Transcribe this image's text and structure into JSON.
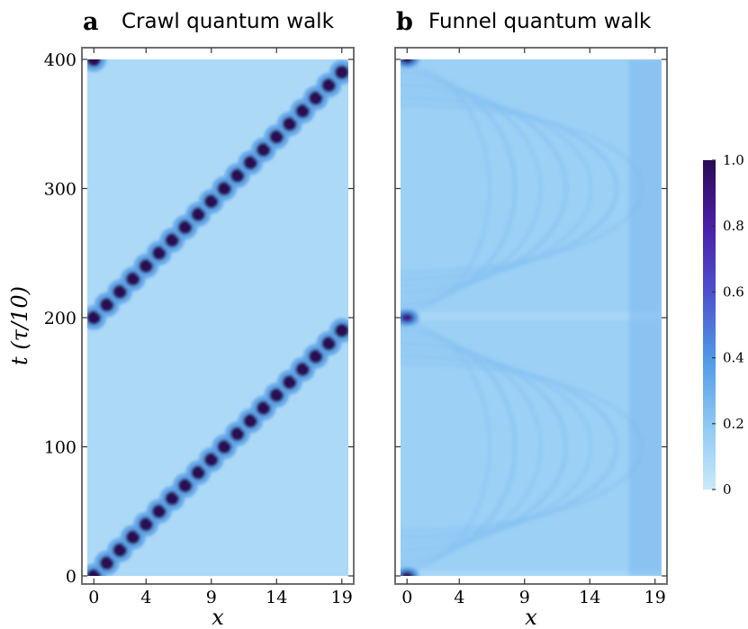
{
  "panels": [
    {
      "letter": "a",
      "title": "Crawl quantum walk"
    },
    {
      "letter": "b",
      "title": "Funnel quantum walk"
    }
  ],
  "y_axis_label": "t (τ/10)",
  "x_axis_label": "x",
  "colorbar": {
    "ticks": [
      "0",
      "0.2",
      "0.4",
      "0.6",
      "0.8",
      "1.0"
    ],
    "stops": [
      "#cbe9f9",
      "#8cc8f3",
      "#4f97e6",
      "#4d52cc",
      "#4a1fa8",
      "#2b0b55"
    ]
  },
  "chart_data": [
    {
      "type": "heatmap",
      "title": "Crawl quantum walk",
      "xlabel": "x",
      "ylabel": "t (τ/10)",
      "x_ticks": [
        0,
        4,
        9,
        14,
        19
      ],
      "y_ticks": [
        0,
        100,
        200,
        300,
        400
      ],
      "xlim": [
        0,
        19
      ],
      "ylim": [
        0,
        400
      ],
      "description_values": "Probability peak (~1.0) moves one site per 10 time units: x = t/10 for t in [0,190], then returns to x = 0 at t = 200 and repeats; background ~0.1",
      "peak_path": [
        {
          "t": 0,
          "x": 0
        },
        {
          "t": 10,
          "x": 1
        },
        {
          "t": 20,
          "x": 2
        },
        {
          "t": 30,
          "x": 3
        },
        {
          "t": 40,
          "x": 4
        },
        {
          "t": 50,
          "x": 5
        },
        {
          "t": 60,
          "x": 6
        },
        {
          "t": 70,
          "x": 7
        },
        {
          "t": 80,
          "x": 8
        },
        {
          "t": 90,
          "x": 9
        },
        {
          "t": 100,
          "x": 10
        },
        {
          "t": 110,
          "x": 11
        },
        {
          "t": 120,
          "x": 12
        },
        {
          "t": 130,
          "x": 13
        },
        {
          "t": 140,
          "x": 14
        },
        {
          "t": 150,
          "x": 15
        },
        {
          "t": 160,
          "x": 16
        },
        {
          "t": 170,
          "x": 17
        },
        {
          "t": 180,
          "x": 18
        },
        {
          "t": 190,
          "x": 19
        },
        {
          "t": 200,
          "x": 0
        },
        {
          "t": 210,
          "x": 1
        },
        {
          "t": 220,
          "x": 2
        },
        {
          "t": 230,
          "x": 3
        },
        {
          "t": 240,
          "x": 4
        },
        {
          "t": 250,
          "x": 5
        },
        {
          "t": 260,
          "x": 6
        },
        {
          "t": 270,
          "x": 7
        },
        {
          "t": 280,
          "x": 8
        },
        {
          "t": 290,
          "x": 9
        },
        {
          "t": 300,
          "x": 10
        },
        {
          "t": 310,
          "x": 11
        },
        {
          "t": 320,
          "x": 12
        },
        {
          "t": 330,
          "x": 13
        },
        {
          "t": 340,
          "x": 14
        },
        {
          "t": 350,
          "x": 15
        },
        {
          "t": 360,
          "x": 16
        },
        {
          "t": 370,
          "x": 17
        },
        {
          "t": 380,
          "x": 18
        },
        {
          "t": 390,
          "x": 19
        },
        {
          "t": 400,
          "x": 0
        }
      ],
      "peak_value": 1.0,
      "background_value": 0.1
    },
    {
      "type": "heatmap",
      "title": "Funnel quantum walk",
      "xlabel": "x",
      "ylabel": "t (τ/10)",
      "x_ticks": [
        0,
        4,
        9,
        14,
        19
      ],
      "y_ticks": [
        0,
        100,
        200,
        300,
        400
      ],
      "xlim": [
        0,
        19
      ],
      "ylim": [
        0,
        400
      ],
      "peaks": [
        {
          "t": 0,
          "x": 0,
          "value": 1.0
        },
        {
          "t": 200,
          "x": 0,
          "value": 0.9
        },
        {
          "t": 400,
          "x": 0,
          "value": 1.0
        }
      ],
      "background_value": 0.15,
      "pattern": "nested arcs spreading from x=0 toward x=19 and refocusing at x=0 with period 200"
    }
  ]
}
